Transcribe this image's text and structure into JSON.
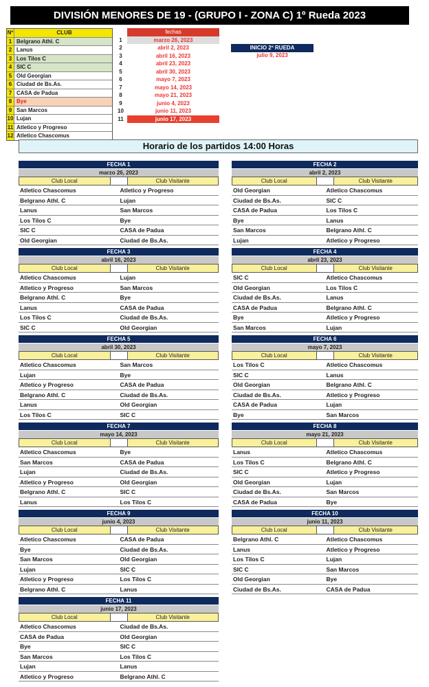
{
  "title": "DIVISIÓN MENORES DE 19 - (GRUPO I - ZONA C) 1º Rueda 2023",
  "clubs_header": {
    "num": "Nº",
    "club": "CLUB"
  },
  "clubs": [
    {
      "n": "1",
      "name": "Belgrano Athl. C",
      "style": "g"
    },
    {
      "n": "2",
      "name": "Lanus",
      "style": ""
    },
    {
      "n": "3",
      "name": "Los Tilos C",
      "style": "g"
    },
    {
      "n": "4",
      "name": "SIC C",
      "style": "g"
    },
    {
      "n": "5",
      "name": "Old Georgian",
      "style": ""
    },
    {
      "n": "6",
      "name": "Ciudad de Bs.As.",
      "style": ""
    },
    {
      "n": "7",
      "name": "CASA de Padua",
      "style": ""
    },
    {
      "n": "8",
      "name": "Bye",
      "style": "o"
    },
    {
      "n": "9",
      "name": "San Marcos",
      "style": ""
    },
    {
      "n": "10",
      "name": "Lujan",
      "style": ""
    },
    {
      "n": "11",
      "name": "Atletico y Progreso",
      "style": ""
    },
    {
      "n": "12",
      "name": "Atletico Chascomus",
      "style": ""
    }
  ],
  "fechas_header": "fechas",
  "fechas": [
    {
      "n": "1",
      "date": "marzo 26, 2023",
      "style": "s"
    },
    {
      "n": "2",
      "date": "abril 2, 2023",
      "style": ""
    },
    {
      "n": "3",
      "date": "abril 16, 2023",
      "style": ""
    },
    {
      "n": "4",
      "date": "abril 23, 2023",
      "style": ""
    },
    {
      "n": "5",
      "date": "abril 30, 2023",
      "style": ""
    },
    {
      "n": "6",
      "date": "mayo 7, 2023",
      "style": ""
    },
    {
      "n": "7",
      "date": "mayo 14, 2023",
      "style": ""
    },
    {
      "n": "8",
      "date": "mayo 21, 2023",
      "style": ""
    },
    {
      "n": "9",
      "date": "junio 4, 2023",
      "style": ""
    },
    {
      "n": "10",
      "date": "junio 11, 2023",
      "style": ""
    },
    {
      "n": "11",
      "date": "junio 17, 2023",
      "style": "r"
    }
  ],
  "inicio": {
    "label": "INICIO 2º RUEDA",
    "date": "julio 9, 2023"
  },
  "horario": "Horario de los partidos 14:00 Horas",
  "col_local": "Club Local",
  "col_visitante": "Club Visitante",
  "rounds": [
    {
      "title": "FECHA 1",
      "date": "marzo 26, 2023",
      "matches": [
        [
          "Atletico Chascomus",
          "Atletico y Progreso"
        ],
        [
          "Belgrano Athl. C",
          "Lujan"
        ],
        [
          "Lanus",
          "San Marcos"
        ],
        [
          "Los Tilos C",
          "Bye"
        ],
        [
          "SIC C",
          "CASA de Padua"
        ],
        [
          "Old Georgian",
          "Ciudad de Bs.As."
        ]
      ]
    },
    {
      "title": "FECHA 2",
      "date": "abril 2, 2023",
      "matches": [
        [
          "Old Georgian",
          "Atletico Chascomus"
        ],
        [
          "Ciudad de Bs.As.",
          "SIC C"
        ],
        [
          "CASA de Padua",
          "Los Tilos C"
        ],
        [
          "Bye",
          "Lanus"
        ],
        [
          "San Marcos",
          "Belgrano Athl. C"
        ],
        [
          "Lujan",
          "Atletico y Progreso"
        ]
      ]
    },
    {
      "title": "FECHA 3",
      "date": "abril 16, 2023",
      "matches": [
        [
          "Atletico Chascomus",
          "Lujan"
        ],
        [
          "Atletico y Progreso",
          "San Marcos"
        ],
        [
          "Belgrano Athl. C",
          "Bye"
        ],
        [
          "Lanus",
          "CASA de Padua"
        ],
        [
          "Los Tilos C",
          "Ciudad de Bs.As."
        ],
        [
          "SIC C",
          "Old Georgian"
        ]
      ]
    },
    {
      "title": "FECHA 4",
      "date": "abril 23, 2023",
      "matches": [
        [
          "SIC C",
          "Atletico Chascomus"
        ],
        [
          "Old Georgian",
          "Los Tilos C"
        ],
        [
          "Ciudad de Bs.As.",
          "Lanus"
        ],
        [
          "CASA de Padua",
          "Belgrano Athl. C"
        ],
        [
          "Bye",
          "Atletico y Progreso"
        ],
        [
          "San Marcos",
          "Lujan"
        ]
      ]
    },
    {
      "title": "FECHA 5",
      "date": "abril 30, 2023",
      "matches": [
        [
          "Atletico Chascomus",
          "San Marcos"
        ],
        [
          "Lujan",
          "Bye"
        ],
        [
          "Atletico y Progreso",
          "CASA de Padua"
        ],
        [
          "Belgrano Athl. C",
          "Ciudad de Bs.As."
        ],
        [
          "Lanus",
          "Old Georgian"
        ],
        [
          "Los Tilos C",
          "SIC C"
        ]
      ]
    },
    {
      "title": "FECHA 6",
      "date": "mayo 7, 2023",
      "matches": [
        [
          "Los Tilos C",
          "Atletico Chascomus"
        ],
        [
          "SIC C",
          "Lanus"
        ],
        [
          "Old Georgian",
          "Belgrano Athl. C"
        ],
        [
          "Ciudad de Bs.As.",
          "Atletico y Progreso"
        ],
        [
          "CASA de Padua",
          "Lujan"
        ],
        [
          "Bye",
          "San Marcos"
        ]
      ]
    },
    {
      "title": "FECHA 7",
      "date": "mayo 14, 2023",
      "matches": [
        [
          "Atletico Chascomus",
          "Bye"
        ],
        [
          "San Marcos",
          "CASA de Padua"
        ],
        [
          "Lujan",
          "Ciudad de Bs.As."
        ],
        [
          "Atletico y Progreso",
          "Old Georgian"
        ],
        [
          "Belgrano Athl. C",
          "SIC C"
        ],
        [
          "Lanus",
          "Los Tilos C"
        ]
      ]
    },
    {
      "title": "FECHA 8",
      "date": "mayo 21, 2023",
      "matches": [
        [
          "Lanus",
          "Atletico Chascomus"
        ],
        [
          "Los Tilos C",
          "Belgrano Athl. C"
        ],
        [
          "SIC C",
          "Atletico y Progreso"
        ],
        [
          "Old Georgian",
          "Lujan"
        ],
        [
          "Ciudad de Bs.As.",
          "San Marcos"
        ],
        [
          "CASA de Padua",
          "Bye"
        ]
      ]
    },
    {
      "title": "FECHA 9",
      "date": "junio 4, 2023",
      "matches": [
        [
          "Atletico Chascomus",
          "CASA de Padua"
        ],
        [
          "Bye",
          "Ciudad de Bs.As."
        ],
        [
          "San Marcos",
          "Old Georgian"
        ],
        [
          "Lujan",
          "SIC C"
        ],
        [
          "Atletico y Progreso",
          "Los Tilos C"
        ],
        [
          "Belgrano Athl. C",
          "Lanus"
        ]
      ]
    },
    {
      "title": "FECHA 10",
      "date": "junio 11, 2023",
      "matches": [
        [
          "Belgrano Athl. C",
          "Atletico Chascomus"
        ],
        [
          "Lanus",
          "Atletico y Progreso"
        ],
        [
          "Los Tilos C",
          "Lujan"
        ],
        [
          "SIC C",
          "San Marcos"
        ],
        [
          "Old Georgian",
          "Bye"
        ],
        [
          "Ciudad de Bs.As.",
          "CASA de Padua"
        ]
      ]
    },
    {
      "title": "FECHA 11",
      "date": "junio 17, 2023",
      "matches": [
        [
          "Atletico Chascomus",
          "Ciudad de Bs.As."
        ],
        [
          "CASA de Padua",
          "Old Georgian"
        ],
        [
          "Bye",
          "SIC C"
        ],
        [
          "San Marcos",
          "Los Tilos C"
        ],
        [
          "Lujan",
          "Lanus"
        ],
        [
          "Atletico y Progreso",
          "Belgrano Athl. C"
        ]
      ]
    }
  ]
}
